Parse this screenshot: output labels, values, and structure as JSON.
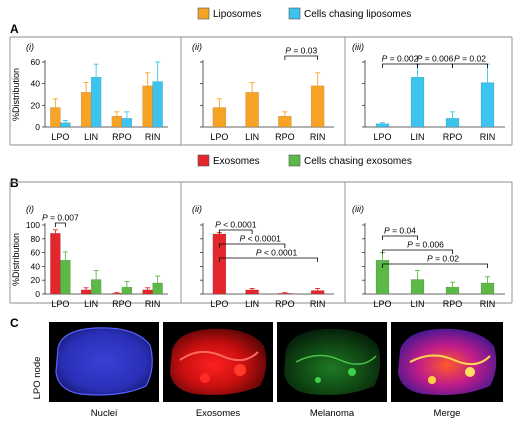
{
  "colors": {
    "liposomes": "#f7a325",
    "cells_liposomes": "#3cc4ef",
    "exosomes": "#e4272c",
    "cells_exosomes": "#5cb947",
    "panel_border": "#8c8c8c",
    "axis": "#333333"
  },
  "section_labels": {
    "a": "A",
    "b": "B",
    "c": "C"
  },
  "legends": {
    "a": [
      {
        "label": "Liposomes",
        "color": "#f7a325"
      },
      {
        "label": "Cells chasing liposomes",
        "color": "#3cc4ef"
      }
    ],
    "b": [
      {
        "label": "Exosomes",
        "color": "#e4272c"
      },
      {
        "label": "Cells chasing exosomes",
        "color": "#5cb947"
      }
    ]
  },
  "chart_data": [
    {
      "id": "a-i",
      "type": "bar",
      "panel_label": "(i)",
      "ylabel": "%Distribution",
      "ylim": [
        0,
        60
      ],
      "yticks": [
        "0",
        "20",
        "40",
        "60"
      ],
      "categories": [
        "LPO",
        "LIN",
        "RPO",
        "RIN"
      ],
      "series": [
        {
          "name": "Liposomes",
          "color": "#f7a325",
          "values": [
            18,
            32,
            10,
            38
          ],
          "errors": [
            8,
            9,
            4,
            12
          ]
        },
        {
          "name": "Cells chasing liposomes",
          "color": "#3cc4ef",
          "values": [
            4,
            46,
            8,
            42
          ],
          "errors": [
            2,
            12,
            6,
            18
          ]
        }
      ],
      "brackets": []
    },
    {
      "id": "a-ii",
      "type": "bar",
      "panel_label": "(ii)",
      "ylim": [
        0,
        60
      ],
      "categories": [
        "LPO",
        "LIN",
        "RPO",
        "RIN"
      ],
      "series": [
        {
          "name": "Liposomes",
          "color": "#f7a325",
          "values": [
            18,
            32,
            10,
            38
          ],
          "errors": [
            8,
            9,
            4,
            12
          ]
        }
      ],
      "brackets": [
        {
          "from": 2,
          "to": 3,
          "label": "P = 0.03",
          "level": 0
        }
      ]
    },
    {
      "id": "a-iii",
      "type": "bar",
      "panel_label": "(iii)",
      "ylim": [
        0,
        60
      ],
      "categories": [
        "LPO",
        "LIN",
        "RPO",
        "RIN"
      ],
      "series": [
        {
          "name": "Cells chasing liposomes",
          "color": "#3cc4ef",
          "values": [
            3,
            46,
            8,
            41
          ],
          "errors": [
            1,
            12,
            6,
            17
          ]
        }
      ],
      "brackets": [
        {
          "from": 0,
          "to": 1,
          "label": "P = 0.002",
          "level": 0
        },
        {
          "from": 1,
          "to": 2,
          "label": "P = 0.006",
          "level": 0
        },
        {
          "from": 2,
          "to": 3,
          "label": "P = 0.02",
          "level": 0
        }
      ]
    },
    {
      "id": "b-i",
      "type": "bar",
      "panel_label": "(i)",
      "ylabel": "%Distribution",
      "ylim": [
        0,
        100
      ],
      "yticks": [
        "0",
        "20",
        "40",
        "60",
        "80",
        "100"
      ],
      "categories": [
        "LPO",
        "LIN",
        "RPO",
        "RIN"
      ],
      "series": [
        {
          "name": "Exosomes",
          "color": "#e4272c",
          "values": [
            88,
            6,
            1,
            6
          ],
          "errors": [
            5,
            3,
            1,
            3
          ]
        },
        {
          "name": "Cells chasing exosomes",
          "color": "#5cb947",
          "values": [
            49,
            21,
            10,
            16
          ],
          "errors": [
            12,
            13,
            8,
            10
          ]
        }
      ],
      "brackets": [
        {
          "from": 0,
          "to": 0.5,
          "label": "P = 0.007",
          "level": 0
        }
      ]
    },
    {
      "id": "b-ii",
      "type": "bar",
      "panel_label": "(ii)",
      "ylim": [
        0,
        100
      ],
      "categories": [
        "LPO",
        "LIN",
        "RPO",
        "RIN"
      ],
      "series": [
        {
          "name": "Exosomes",
          "color": "#e4272c",
          "values": [
            87,
            6,
            1,
            5
          ],
          "errors": [
            2,
            2,
            1,
            3
          ]
        }
      ],
      "brackets": [
        {
          "from": 0,
          "to": 1,
          "label": "P < 0.0001",
          "level": 2
        },
        {
          "from": 0,
          "to": 2,
          "label": "P < 0.0001",
          "level": 1
        },
        {
          "from": 0,
          "to": 3,
          "label": "P < 0.0001",
          "level": 0
        }
      ]
    },
    {
      "id": "b-iii",
      "type": "bar",
      "panel_label": "(iii)",
      "ylim": [
        0,
        100
      ],
      "categories": [
        "LPO",
        "LIN",
        "RPO",
        "RIN"
      ],
      "series": [
        {
          "name": "Cells chasing exosomes",
          "color": "#5cb947",
          "values": [
            49,
            21,
            10,
            16
          ],
          "errors": [
            11,
            13,
            7,
            9
          ]
        }
      ],
      "brackets": [
        {
          "from": 0,
          "to": 1,
          "label": "P = 0.04",
          "level": 2
        },
        {
          "from": 0,
          "to": 2,
          "label": "P = 0.006",
          "level": 1
        },
        {
          "from": 0,
          "to": 3,
          "label": "P = 0.02",
          "level": 0
        }
      ]
    }
  ],
  "images": {
    "row_label": "LPO node",
    "captions": [
      "Nuclei",
      "Exosomes",
      "Melanoma",
      "Merge"
    ]
  }
}
